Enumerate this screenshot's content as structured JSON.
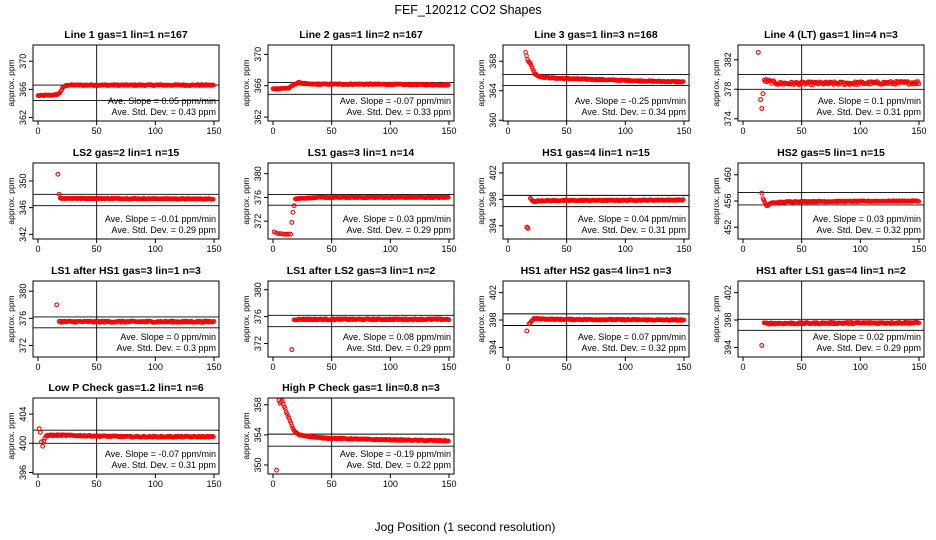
{
  "title": "FEF_120212  CO2 Shapes",
  "xlabel": "Jog Position (1 second resolution)",
  "chart_data": [
    {
      "type": "scatter",
      "title": "Line 1 gas=1 lin=1 n=167",
      "ylabel": "approx. ppm",
      "xlim": [
        0,
        150
      ],
      "xticks": [
        0,
        50,
        100,
        150
      ],
      "yticks": [
        362,
        366,
        370
      ],
      "ylim": [
        361.5,
        372.3
      ],
      "hlines": [
        366.6,
        364.4
      ],
      "vline": 50,
      "slope_text": "Ave. Slope = 0.05  ppm/min",
      "std_text": "Ave. Std. Dev. = 0.43  ppm",
      "segments": [
        [
          0,
          365.1
        ],
        [
          15,
          365.2
        ],
        [
          18,
          365.4
        ],
        [
          20,
          365.9
        ],
        [
          22,
          366.4
        ],
        [
          25,
          366.6
        ],
        [
          40,
          366.6
        ],
        [
          80,
          366.6
        ],
        [
          120,
          366.6
        ],
        [
          150,
          366.6
        ]
      ],
      "x0": 0,
      "x1": 150,
      "noise": 0.08,
      "outliers": []
    },
    {
      "type": "scatter",
      "title": "Line 2 gas=1 lin=2 n=167",
      "ylabel": "approx. ppm",
      "xlim": [
        0,
        150
      ],
      "xticks": [
        0,
        50,
        100,
        150
      ],
      "yticks": [
        362,
        366,
        370
      ],
      "ylim": [
        361.5,
        371.2
      ],
      "hlines": [
        366.4,
        364.9
      ],
      "vline": 50,
      "slope_text": "Ave. Slope = -0.07  ppm/min",
      "std_text": "Ave. Std. Dev. = 0.33  ppm",
      "segments": [
        [
          0,
          365.6
        ],
        [
          14,
          365.7
        ],
        [
          18,
          366.2
        ],
        [
          22,
          366.4
        ],
        [
          30,
          366.2
        ],
        [
          80,
          366.2
        ],
        [
          150,
          366.1
        ]
      ],
      "x0": 0,
      "x1": 150,
      "noise": 0.07,
      "outliers": []
    },
    {
      "type": "scatter",
      "title": "Line 3 gas=1 lin=3 n=168",
      "ylabel": "approx. ppm",
      "xlim": [
        0,
        150
      ],
      "xticks": [
        0,
        50,
        100,
        150
      ],
      "yticks": [
        360,
        364,
        368
      ],
      "ylim": [
        359.9,
        370.2
      ],
      "hlines": [
        366.2,
        364.7
      ],
      "vline": 50,
      "slope_text": "Ave. Slope = -0.25  ppm/min",
      "std_text": "Ave. Std. Dev. = 0.34  ppm",
      "segments": [
        [
          15,
          369.2
        ],
        [
          17,
          368.1
        ],
        [
          19,
          367.7
        ],
        [
          21,
          367.0
        ],
        [
          23,
          366.3
        ],
        [
          27,
          365.9
        ],
        [
          40,
          365.7
        ],
        [
          80,
          365.5
        ],
        [
          120,
          365.3
        ],
        [
          150,
          365.2
        ]
      ],
      "x0": 15,
      "x1": 150,
      "noise": 0.07,
      "outliers": []
    },
    {
      "type": "scatter",
      "title": "Line 4 (LT) gas=1 lin=4 n=3",
      "ylabel": "approx. ppm",
      "xlim": [
        0,
        150
      ],
      "xticks": [
        0,
        50,
        100,
        150
      ],
      "yticks": [
        374,
        378,
        382
      ],
      "ylim": [
        373.7,
        384.0
      ],
      "hlines": [
        380.0,
        378.0
      ],
      "vline": 50,
      "slope_text": "Ave. Slope = 0.1  ppm/min",
      "std_text": "Ave. Std. Dev. = 0.31  ppm",
      "segments": [
        [
          18,
          379.2
        ],
        [
          30,
          378.8
        ],
        [
          80,
          378.8
        ],
        [
          150,
          378.9
        ]
      ],
      "x0": 18,
      "x1": 150,
      "noise": 0.22,
      "outliers": [
        [
          13,
          383.0
        ],
        [
          15,
          376.6
        ],
        [
          16,
          375.4
        ],
        [
          17,
          377.4
        ]
      ]
    },
    {
      "type": "scatter",
      "title": "LS2 gas=2 lin=1 n=15",
      "ylabel": "approx. ppm",
      "xlim": [
        0,
        150
      ],
      "xticks": [
        0,
        50,
        100,
        150
      ],
      "yticks": [
        342,
        346,
        350
      ],
      "ylim": [
        341.3,
        352.7
      ],
      "hlines": [
        348.0,
        346.3
      ],
      "vline": 50,
      "slope_text": "Ave. Slope = -0.01  ppm/min",
      "std_text": "Ave. Std. Dev. = 0.29  ppm",
      "segments": [
        [
          19,
          347.4
        ],
        [
          150,
          347.3
        ]
      ],
      "x0": 19,
      "x1": 150,
      "noise": 0.06,
      "outliers": [
        [
          17,
          351.0
        ],
        [
          18,
          348.0
        ]
      ]
    },
    {
      "type": "scatter",
      "title": "LS1 gas=3 lin=1 n=14",
      "ylabel": "approx. ppm",
      "xlim": [
        0,
        150
      ],
      "xticks": [
        0,
        50,
        100,
        150
      ],
      "yticks": [
        372,
        376,
        380
      ],
      "ylim": [
        369.0,
        381.8
      ],
      "hlines": [
        376.5,
        374.7
      ],
      "vline": 50,
      "slope_text": "Ave. Slope = 0.03  ppm/min",
      "std_text": "Ave. Std. Dev. = 0.29  ppm",
      "segments": [
        [
          19,
          375.8
        ],
        [
          40,
          376.0
        ],
        [
          150,
          376.0
        ]
      ],
      "x0": 19,
      "x1": 150,
      "noise": 0.06,
      "outliers": [
        [
          1,
          370.2
        ],
        [
          3,
          370.0
        ],
        [
          5,
          369.9
        ],
        [
          7,
          369.9
        ],
        [
          9,
          369.8
        ],
        [
          11,
          369.8
        ],
        [
          13,
          369.8
        ],
        [
          15,
          369.8
        ],
        [
          16,
          371.8
        ],
        [
          17,
          373.5
        ],
        [
          18,
          374.6
        ]
      ]
    },
    {
      "type": "scatter",
      "title": "HS1 gas=4 lin=1 n=15",
      "ylabel": "approx. ppm",
      "xlim": [
        0,
        150
      ],
      "xticks": [
        0,
        50,
        100,
        150
      ],
      "yticks": [
        394,
        398,
        402
      ],
      "ylim": [
        392.0,
        403.5
      ],
      "hlines": [
        398.6,
        396.9
      ],
      "vline": 50,
      "slope_text": "Ave. Slope = 0.04  ppm/min",
      "std_text": "Ave. Std. Dev. = 0.31  ppm",
      "segments": [
        [
          19,
          398.2
        ],
        [
          22,
          397.6
        ],
        [
          26,
          397.8
        ],
        [
          150,
          397.9
        ]
      ],
      "x0": 19,
      "x1": 150,
      "noise": 0.07,
      "outliers": [
        [
          16,
          393.8
        ],
        [
          17,
          393.6
        ]
      ]
    },
    {
      "type": "scatter",
      "title": "HS2 gas=5 lin=1 n=15",
      "ylabel": "approx. ppm",
      "xlim": [
        0,
        150
      ],
      "xticks": [
        0,
        50,
        100,
        150
      ],
      "yticks": [
        452,
        456,
        460
      ],
      "ylim": [
        450.2,
        461.8
      ],
      "hlines": [
        457.3,
        455.4
      ],
      "vline": 50,
      "slope_text": "Ave. Slope = 0.03  ppm/min",
      "std_text": "Ave. Std. Dev. = 0.32  ppm",
      "segments": [
        [
          17,
          456.4
        ],
        [
          20,
          455.2
        ],
        [
          24,
          455.7
        ],
        [
          40,
          455.9
        ],
        [
          150,
          456.0
        ]
      ],
      "x0": 17,
      "x1": 150,
      "noise": 0.07,
      "outliers": [
        [
          16,
          457.2
        ]
      ]
    },
    {
      "type": "scatter",
      "title": "LS1 after HS1 gas=3 lin=1 n=3",
      "ylabel": "approx. ppm",
      "xlim": [
        0,
        150
      ],
      "xticks": [
        0,
        50,
        100,
        150
      ],
      "yticks": [
        372,
        376,
        380
      ],
      "ylim": [
        370.3,
        381.5
      ],
      "hlines": [
        376.2,
        374.6
      ],
      "vline": 50,
      "slope_text": "Ave. Slope = 0  ppm/min",
      "std_text": "Ave. Std. Dev. = 0.3  ppm",
      "segments": [
        [
          18,
          375.5
        ],
        [
          150,
          375.5
        ]
      ],
      "x0": 18,
      "x1": 150,
      "noise": 0.12,
      "outliers": [
        [
          16,
          378.0
        ]
      ]
    },
    {
      "type": "scatter",
      "title": "LS1 after LS2 gas=3 lin=1 n=2",
      "ylabel": "approx. ppm",
      "xlim": [
        0,
        150
      ],
      "xticks": [
        0,
        50,
        100,
        150
      ],
      "yticks": [
        372,
        376,
        380
      ],
      "ylim": [
        370.0,
        381.3
      ],
      "hlines": [
        376.2,
        374.5
      ],
      "vline": 50,
      "slope_text": "Ave. Slope = 0.08  ppm/min",
      "std_text": "Ave. Std. Dev. = 0.29  ppm",
      "segments": [
        [
          18,
          375.6
        ],
        [
          150,
          375.6
        ]
      ],
      "x0": 18,
      "x1": 150,
      "noise": 0.1,
      "outliers": [
        [
          16,
          371.1
        ]
      ]
    },
    {
      "type": "scatter",
      "title": "HS1 after HS2 gas=4 lin=1 n=3",
      "ylabel": "approx. ppm",
      "xlim": [
        0,
        150
      ],
      "xticks": [
        0,
        50,
        100,
        150
      ],
      "yticks": [
        394,
        398,
        402
      ],
      "ylim": [
        392.6,
        403.7
      ],
      "hlines": [
        398.9,
        397.2
      ],
      "vline": 50,
      "slope_text": "Ave. Slope = 0.07  ppm/min",
      "std_text": "Ave. Std. Dev. = 0.32  ppm",
      "segments": [
        [
          18,
          397.4
        ],
        [
          22,
          398.2
        ],
        [
          40,
          398.1
        ],
        [
          150,
          398.0
        ]
      ],
      "x0": 18,
      "x1": 150,
      "noise": 0.08,
      "outliers": [
        [
          16,
          396.4
        ]
      ]
    },
    {
      "type": "scatter",
      "title": "HS1 after LS1 gas=4 lin=1 n=2",
      "ylabel": "approx. ppm",
      "xlim": [
        0,
        150
      ],
      "xticks": [
        0,
        50,
        100,
        150
      ],
      "yticks": [
        394,
        398,
        402
      ],
      "ylim": [
        392.6,
        403.7
      ],
      "hlines": [
        398.1,
        396.5
      ],
      "vline": 50,
      "slope_text": "Ave. Slope = 0.02  ppm/min",
      "std_text": "Ave. Std. Dev. = 0.29  ppm",
      "segments": [
        [
          18,
          397.5
        ],
        [
          150,
          397.6
        ]
      ],
      "x0": 18,
      "x1": 150,
      "noise": 0.12,
      "outliers": [
        [
          16,
          394.3
        ]
      ]
    },
    {
      "type": "scatter",
      "title": "Low P Check gas=1.2 lin=1 n=6",
      "ylabel": "approx. ppm",
      "xlim": [
        0,
        150
      ],
      "xticks": [
        0,
        50,
        100,
        150
      ],
      "yticks": [
        396,
        400,
        404
      ],
      "ylim": [
        395.8,
        406.2
      ],
      "hlines": [
        401.8,
        400.0
      ],
      "vline": 50,
      "slope_text": "Ave. Slope = -0.07  ppm/min",
      "std_text": "Ave. Std. Dev. = 0.31  ppm",
      "segments": [
        [
          8,
          401.1
        ],
        [
          20,
          401.1
        ],
        [
          80,
          400.9
        ],
        [
          150,
          400.9
        ]
      ],
      "x0": 8,
      "x1": 150,
      "noise": 0.08,
      "outliers": [
        [
          1,
          402.0
        ],
        [
          2,
          401.5
        ],
        [
          3,
          400.2
        ],
        [
          4,
          399.6
        ],
        [
          5,
          400.3
        ],
        [
          6,
          400.7
        ],
        [
          7,
          401.0
        ]
      ]
    },
    {
      "type": "scatter",
      "title": "High P Check gas=1 lin=0.8 n=3",
      "ylabel": "approx. ppm",
      "xlim": [
        0,
        150
      ],
      "xticks": [
        0,
        50,
        100,
        150
      ],
      "yticks": [
        350,
        354,
        358
      ],
      "ylim": [
        348.8,
        358.9
      ],
      "hlines": [
        354.1,
        352.5
      ],
      "vline": 50,
      "slope_text": "Ave. Slope = -0.19  ppm/min",
      "std_text": "Ave. Std. Dev. = 0.22  ppm",
      "segments": [
        [
          8,
          358.5
        ],
        [
          10,
          357.6
        ],
        [
          12,
          356.8
        ],
        [
          14,
          356.1
        ],
        [
          16,
          355.2
        ],
        [
          18,
          354.5
        ],
        [
          22,
          354.0
        ],
        [
          40,
          353.6
        ],
        [
          80,
          353.4
        ],
        [
          150,
          353.2
        ]
      ],
      "x0": 8,
      "x1": 150,
      "noise": 0.07,
      "outliers": [
        [
          3,
          349.3
        ],
        [
          5,
          358.6
        ],
        [
          6,
          358.2
        ],
        [
          7,
          358.4
        ]
      ]
    }
  ]
}
